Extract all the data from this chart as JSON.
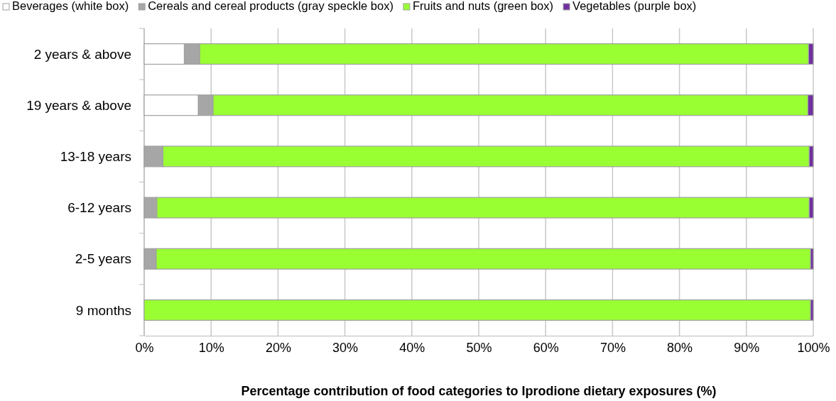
{
  "chart_data": {
    "type": "bar",
    "orientation": "horizontal",
    "stacked": true,
    "categories": [
      "2 years & above",
      "19 years & above",
      "13-18 years",
      "6-12 years",
      "2-5 years",
      "9 months"
    ],
    "series": [
      {
        "name": "Beverages (white box)",
        "color": "#ffffff",
        "values": [
          6.0,
          8.1,
          0,
          0,
          0,
          0
        ]
      },
      {
        "name": "Cereals and cereal products (gray speckle box)",
        "color": "#a6a6a6",
        "values": [
          2.3,
          2.2,
          2.8,
          1.9,
          1.8,
          0
        ]
      },
      {
        "name": "Fruits and nuts (green box)",
        "color": "#99ff33",
        "values": [
          91.0,
          88.9,
          96.6,
          97.5,
          97.8,
          99.6
        ]
      },
      {
        "name": "Vegetables (purple box)",
        "color": "#7030a0",
        "values": [
          0.7,
          0.8,
          0.6,
          0.6,
          0.4,
          0.4
        ]
      }
    ],
    "xlim": [
      0,
      100
    ],
    "xticks": [
      {
        "value": 0,
        "label": "0%"
      },
      {
        "value": 10,
        "label": "10%"
      },
      {
        "value": 20,
        "label": "20%"
      },
      {
        "value": 30,
        "label": "30%"
      },
      {
        "value": 40,
        "label": "40%"
      },
      {
        "value": 50,
        "label": "50%"
      },
      {
        "value": 60,
        "label": "60%"
      },
      {
        "value": 70,
        "label": "70%"
      },
      {
        "value": 80,
        "label": "80%"
      },
      {
        "value": 90,
        "label": "90%"
      },
      {
        "value": 100,
        "label": "100%"
      }
    ],
    "xlabel": "Percentage contribution of food categories to Iprodione dietary exposures (%)",
    "grid": "x",
    "legend": "top"
  }
}
